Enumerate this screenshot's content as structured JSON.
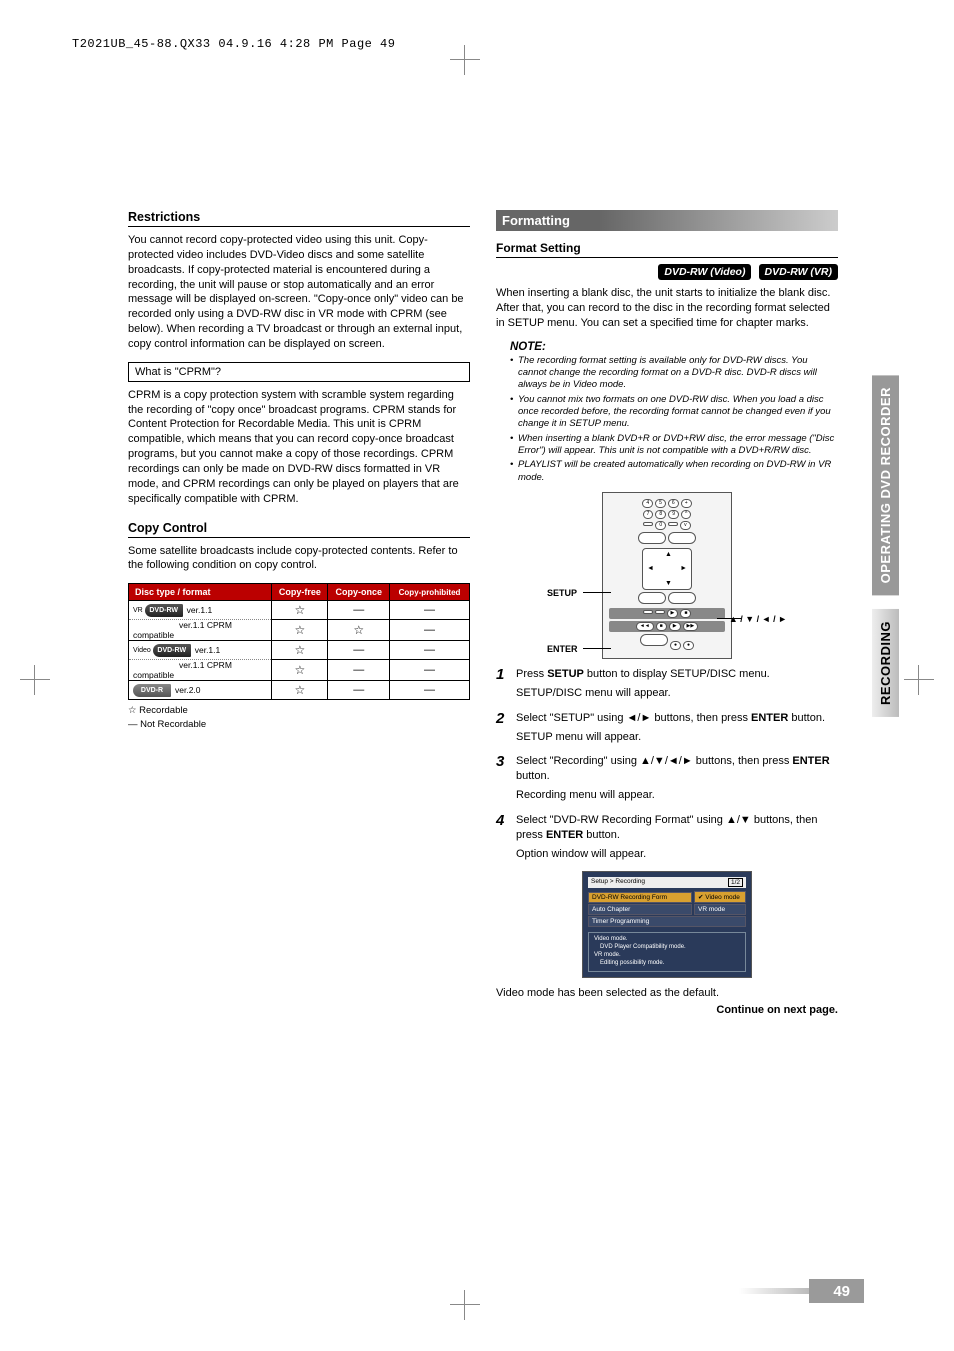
{
  "header_info": "T2021UB_45-88.QX33  04.9.16  4:28 PM  Page 49",
  "page_number": "49",
  "side_tabs": {
    "active": "OPERATING DVD RECORDER",
    "section": "RECORDING"
  },
  "left": {
    "restrictions": {
      "title": "Restrictions",
      "body": "You cannot record copy-protected video using this unit. Copy-protected video includes DVD-Video discs and some satellite broadcasts. If copy-protected material is encountered during a recording, the unit will pause or stop automatically and an error message will be displayed on-screen. \"Copy-once only\" video can be recorded only using a DVD-RW disc in VR mode with CPRM (see below). When recording a TV broadcast or through an external input, copy control information can be displayed on screen.",
      "cprm_q": "What is \"CPRM\"?",
      "cprm_body": "CPRM is a copy protection system with scramble system regarding the recording of \"copy once\" broadcast programs. CPRM stands for Content Protection for Recordable Media. This unit is CPRM compatible, which means that you can record copy-once broadcast programs, but you cannot make a copy of those recordings. CPRM recordings can only be made on DVD-RW discs formatted in VR mode, and CPRM recordings can only be played on players that are specifically compatible with CPRM."
    },
    "copy_control": {
      "title": "Copy Control",
      "body": "Some satellite broadcasts include copy-protected contents. Refer to the following condition on copy control.",
      "table": {
        "columns": [
          "Disc type / format",
          "Copy-free",
          "Copy-once",
          "Copy-prohibited"
        ],
        "rows": [
          {
            "logo": "DVD-RW",
            "logo_class": "rw",
            "sub": "VR",
            "fmt": "ver.1.1",
            "cells": [
              "☆",
              "—",
              "—"
            ]
          },
          {
            "logo": "DVD-RW",
            "logo_class": "rw",
            "sub": "",
            "fmt": "ver.1.1 CPRM compatible",
            "cells": [
              "☆",
              "☆",
              "—"
            ]
          },
          {
            "logo": "DVD-RW",
            "logo_class": "rw",
            "sub": "Video",
            "fmt": "ver.1.1",
            "cells": [
              "☆",
              "—",
              "—"
            ]
          },
          {
            "logo": "DVD-RW",
            "logo_class": "rw",
            "sub": "",
            "fmt": "ver.1.1 CPRM compatible",
            "cells": [
              "☆",
              "—",
              "—"
            ]
          },
          {
            "logo": "DVD-R",
            "logo_class": "r",
            "sub": "",
            "fmt": "ver.2.0",
            "cells": [
              "☆",
              "—",
              "—"
            ]
          }
        ]
      },
      "legend": {
        "rec": "☆   Recordable",
        "nrec": "—   Not Recordable"
      }
    }
  },
  "right": {
    "formatting": {
      "title": "Formatting",
      "sub": "Format Setting",
      "badges": [
        "DVD-RW (Video)",
        "DVD-RW (VR)"
      ],
      "intro": "When inserting a blank disc, the unit starts to initialize the blank disc. After that, you can record to the disc in the recording format selected in SETUP menu. You can set a specified time for chapter marks.",
      "note_title": "NOTE:",
      "notes": [
        "The recording format setting is available only for DVD-RW discs. You cannot change the recording format on a DVD-R disc. DVD-R discs will always be in Video mode.",
        "You cannot mix two formats on one DVD-RW disc. When you load a disc once recorded before, the recording format cannot be changed even if you change it in SETUP menu.",
        "When inserting a blank DVD+R or DVD+RW disc, the error message (\"Disc Error\") will appear. This unit is not compatible with a DVD+R/RW disc.",
        "PLAYLIST will be created automatically when recording on DVD-RW in VR mode."
      ],
      "remote_labels": {
        "setup": "SETUP",
        "enter": "ENTER",
        "arrows": "▲ / ▼ / ◄ / ►"
      },
      "steps": [
        {
          "text_pre": "Press ",
          "bold": "SETUP",
          "text_post": " button to display SETUP/DISC menu.",
          "result": "SETUP/DISC menu will appear."
        },
        {
          "text_pre": "Select \"SETUP\" using ◄/► buttons, then press ",
          "bold": "ENTER",
          "text_post": " button.",
          "result": "SETUP menu will appear."
        },
        {
          "text_pre": "Select \"Recording\" using ▲/▼/◄/► buttons, then press ",
          "bold": "ENTER",
          "text_post": " button.",
          "result": "Recording menu will appear."
        },
        {
          "text_pre": "Select \"DVD-RW Recording Format\" using ▲/▼ buttons, then press ",
          "bold": "ENTER",
          "text_post": " button.",
          "result": "Option window will appear."
        }
      ],
      "screenshot": {
        "title_left": "Setup > Recording",
        "title_right": "1/2",
        "rows": [
          {
            "label": "DVD-RW Recording Form",
            "val": "Video mode",
            "hl": true,
            "check": true
          },
          {
            "label": "Auto Chapter",
            "val": "VR mode",
            "hl": false
          },
          {
            "label": "Timer Programming",
            "val": "",
            "hl": false
          }
        ],
        "desc": [
          "Video mode.",
          "  DVD Player Compatibility mode.",
          "VR mode.",
          "  Editing possibility mode."
        ]
      },
      "after_shot": "Video mode has been selected as the default.",
      "continue": "Continue on next page."
    }
  }
}
